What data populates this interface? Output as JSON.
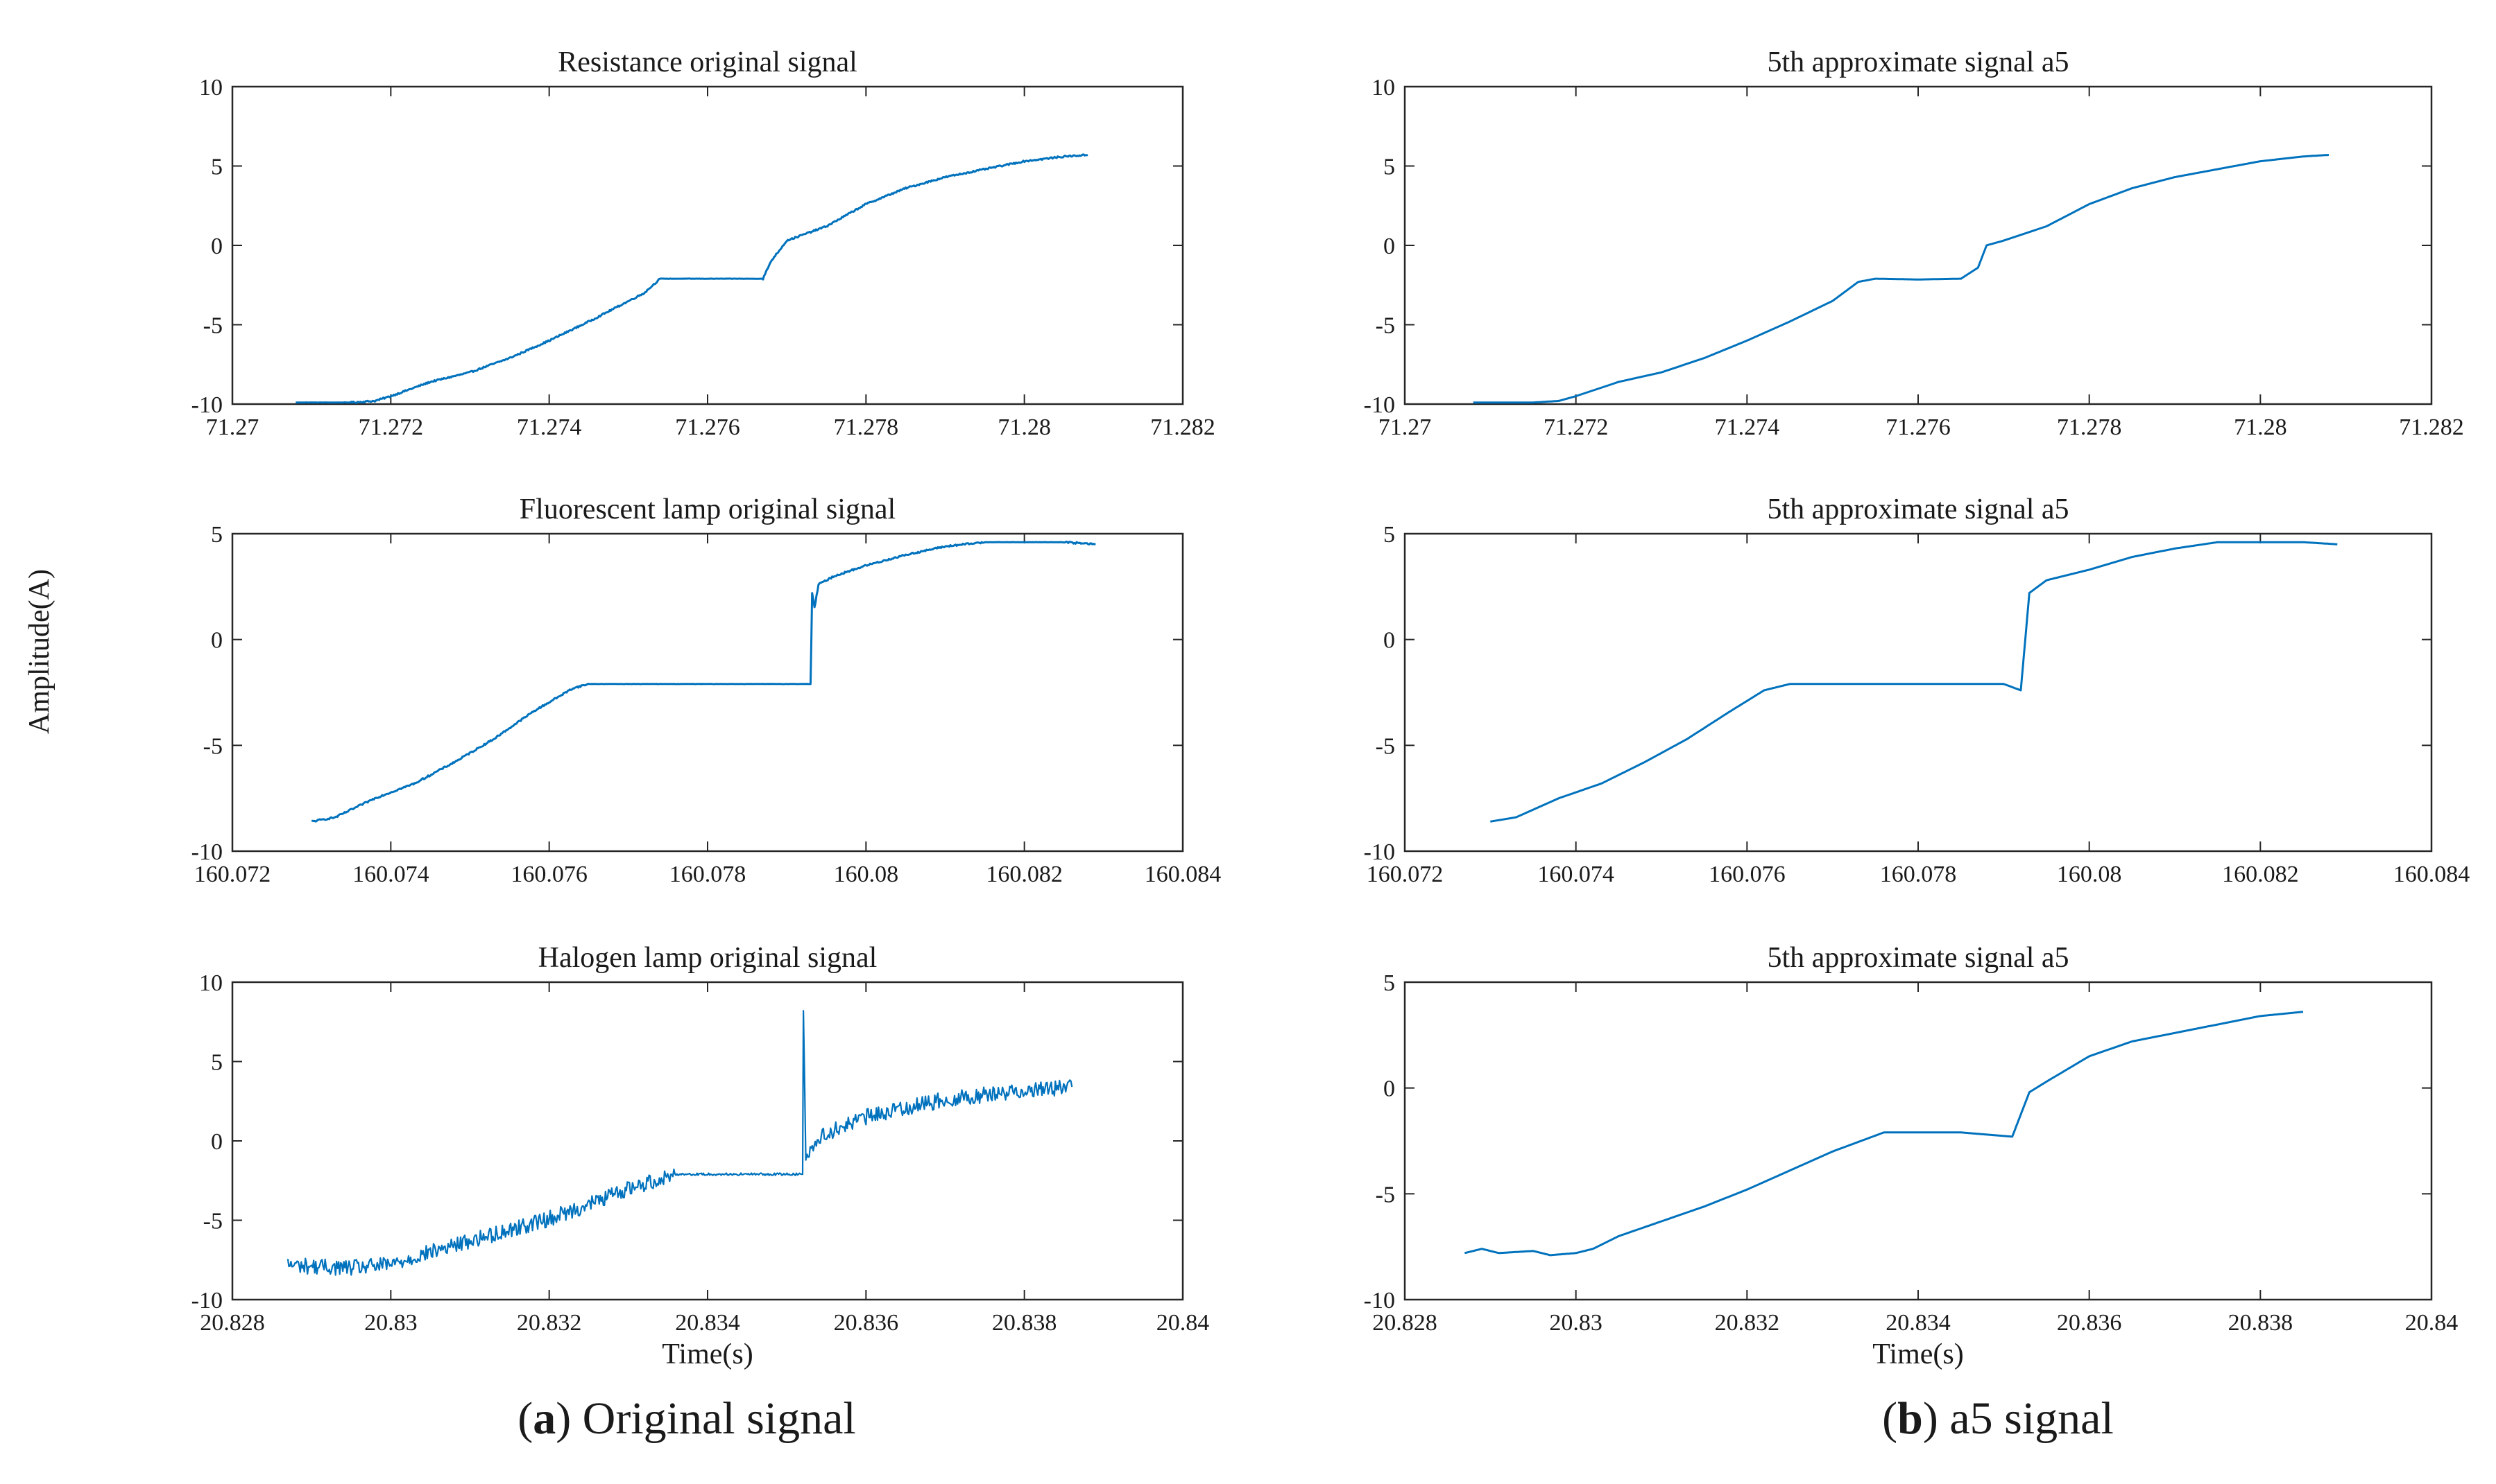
{
  "figure": {
    "ylabel": "Amplitude(A)",
    "captions": [
      {
        "label": "a",
        "text": "Original signal"
      },
      {
        "label": "b",
        "text": "a5 signal"
      }
    ],
    "line_color": "#0072BD",
    "axes_color": "#262626"
  },
  "chart_data": [
    {
      "type": "line",
      "title": "Resistance original signal",
      "xlabel": "",
      "ylabel": "Amplitude(A)",
      "xlim": [
        71.27,
        71.282
      ],
      "ylim": [
        -10,
        10
      ],
      "xticks": [
        71.27,
        71.272,
        71.274,
        71.276,
        71.278,
        71.28,
        71.282
      ],
      "xtick_labels": [
        "71.27",
        "71.272",
        "71.274",
        "71.276",
        "71.278",
        "71.28",
        "71.282"
      ],
      "yticks": [
        -10,
        -5,
        0,
        5,
        10
      ],
      "ytick_labels": [
        "-10",
        "-5",
        "0",
        "5",
        "10"
      ],
      "noise": 0.05,
      "series": [
        {
          "name": "Resistance",
          "x": [
            71.2708,
            71.2715,
            71.2718,
            71.272,
            71.2725,
            71.273,
            71.2735,
            71.274,
            71.2745,
            71.2752,
            71.2754,
            71.2757,
            71.2763,
            71.2767,
            71.2768,
            71.277,
            71.2775,
            71.278,
            71.2785,
            71.279,
            71.2795,
            71.28,
            71.2805,
            71.2808
          ],
          "y": [
            -9.9,
            -9.9,
            -9.8,
            -9.5,
            -8.6,
            -8.0,
            -7.1,
            -6.0,
            -4.8,
            -3.0,
            -2.1,
            -2.1,
            -2.1,
            -2.1,
            -1.0,
            0.3,
            1.2,
            2.6,
            3.6,
            4.3,
            4.8,
            5.3,
            5.6,
            5.7
          ]
        }
      ]
    },
    {
      "type": "line",
      "title": "5th approximate signal a5",
      "xlabel": "",
      "ylabel": "",
      "xlim": [
        71.27,
        71.282
      ],
      "ylim": [
        -10,
        10
      ],
      "xticks": [
        71.27,
        71.272,
        71.274,
        71.276,
        71.278,
        71.28,
        71.282
      ],
      "xtick_labels": [
        "71.27",
        "71.272",
        "71.274",
        "71.276",
        "71.278",
        "71.28",
        "71.282"
      ],
      "yticks": [
        -10,
        -5,
        0,
        5,
        10
      ],
      "ytick_labels": [
        "-10",
        "-5",
        "0",
        "5",
        "10"
      ],
      "noise": 0,
      "series": [
        {
          "name": "a5",
          "x": [
            71.2708,
            71.2715,
            71.2718,
            71.272,
            71.2725,
            71.273,
            71.2735,
            71.274,
            71.2745,
            71.275,
            71.2753,
            71.2755,
            71.276,
            71.2765,
            71.2767,
            71.2768,
            71.277,
            71.2775,
            71.278,
            71.2785,
            71.279,
            71.2795,
            71.28,
            71.2805,
            71.2808
          ],
          "y": [
            -9.9,
            -9.9,
            -9.8,
            -9.5,
            -8.6,
            -8.0,
            -7.1,
            -6.0,
            -4.8,
            -3.5,
            -2.3,
            -2.1,
            -2.15,
            -2.1,
            -1.4,
            0.0,
            0.3,
            1.2,
            2.6,
            3.6,
            4.3,
            4.8,
            5.3,
            5.6,
            5.7
          ]
        }
      ]
    },
    {
      "type": "line",
      "title": "Fluorescent lamp original signal",
      "xlabel": "",
      "ylabel": "Amplitude(A)",
      "xlim": [
        160.072,
        160.084
      ],
      "ylim": [
        -10,
        5
      ],
      "xticks": [
        160.072,
        160.074,
        160.076,
        160.078,
        160.08,
        160.082,
        160.084
      ],
      "xtick_labels": [
        "160.072",
        "160.074",
        "160.076",
        "160.078",
        "160.08",
        "160.082",
        "160.084"
      ],
      "yticks": [
        -10,
        -5,
        0,
        5
      ],
      "ytick_labels": [
        "-10",
        "-5",
        "0",
        "5"
      ],
      "noise": 0.04,
      "series": [
        {
          "name": "Fluorescent lamp",
          "x": [
            160.073,
            160.0733,
            160.0738,
            160.0743,
            160.0748,
            160.0753,
            160.0758,
            160.0763,
            160.0765,
            160.077,
            160.0775,
            160.078,
            160.0785,
            160.079,
            160.0793,
            160.07932,
            160.07935,
            160.0794,
            160.0796,
            160.08,
            160.0805,
            160.081,
            160.0815,
            160.082,
            160.0825,
            160.0829
          ],
          "y": [
            -8.6,
            -8.4,
            -7.5,
            -6.8,
            -5.8,
            -4.7,
            -3.4,
            -2.3,
            -2.1,
            -2.1,
            -2.1,
            -2.1,
            -2.1,
            -2.1,
            -2.1,
            2.2,
            1.5,
            2.6,
            3.0,
            3.5,
            4.0,
            4.4,
            4.6,
            4.6,
            4.6,
            4.5
          ]
        }
      ]
    },
    {
      "type": "line",
      "title": "5th approximate signal a5",
      "xlabel": "",
      "ylabel": "",
      "xlim": [
        160.072,
        160.084
      ],
      "ylim": [
        -10,
        5
      ],
      "xticks": [
        160.072,
        160.074,
        160.076,
        160.078,
        160.08,
        160.082,
        160.084
      ],
      "xtick_labels": [
        "160.072",
        "160.074",
        "160.076",
        "160.078",
        "160.08",
        "160.082",
        "160.084"
      ],
      "yticks": [
        -10,
        -5,
        0,
        5
      ],
      "ytick_labels": [
        "-10",
        "-5",
        "0",
        "5"
      ],
      "noise": 0,
      "series": [
        {
          "name": "a5",
          "x": [
            160.073,
            160.0733,
            160.0738,
            160.0743,
            160.0748,
            160.0753,
            160.0758,
            160.0762,
            160.0765,
            160.077,
            160.0775,
            160.078,
            160.0785,
            160.079,
            160.0792,
            160.0793,
            160.0795,
            160.0797,
            160.08,
            160.0805,
            160.081,
            160.0815,
            160.082,
            160.0825,
            160.0829
          ],
          "y": [
            -8.6,
            -8.4,
            -7.5,
            -6.8,
            -5.8,
            -4.7,
            -3.4,
            -2.4,
            -2.1,
            -2.1,
            -2.1,
            -2.1,
            -2.1,
            -2.1,
            -2.4,
            2.2,
            2.8,
            3.0,
            3.3,
            3.9,
            4.3,
            4.6,
            4.6,
            4.6,
            4.5
          ]
        }
      ]
    },
    {
      "type": "line",
      "title": "Halogen lamp original signal",
      "xlabel": "Time(s)",
      "ylabel": "Amplitude(A)",
      "xlim": [
        20.828,
        20.84
      ],
      "ylim": [
        -10,
        10
      ],
      "xticks": [
        20.828,
        20.83,
        20.832,
        20.834,
        20.836,
        20.838,
        20.84
      ],
      "xtick_labels": [
        "20.828",
        "20.83",
        "20.832",
        "20.834",
        "20.836",
        "20.838",
        "20.84"
      ],
      "yticks": [
        -10,
        -5,
        0,
        5,
        10
      ],
      "ytick_labels": [
        "-10",
        "-5",
        "0",
        "5",
        "10"
      ],
      "noise": 0.5,
      "series": [
        {
          "name": "Halogen lamp",
          "x": [
            20.8287,
            20.829,
            20.8295,
            20.83,
            20.8305,
            20.831,
            20.8315,
            20.832,
            20.8325,
            20.833,
            20.8336,
            20.834,
            20.8345,
            20.8352,
            20.83521,
            20.83524,
            20.83527,
            20.8355,
            20.836,
            20.8365,
            20.837,
            20.8375,
            20.838,
            20.8386
          ],
          "y": [
            -7.8,
            -7.9,
            -8.0,
            -7.8,
            -7.0,
            -6.3,
            -5.6,
            -4.9,
            -4.0,
            -3.0,
            -2.1,
            -2.1,
            -2.1,
            -2.1,
            8.2,
            -1.0,
            -0.6,
            0.5,
            1.5,
            2.1,
            2.6,
            2.9,
            3.2,
            3.4
          ]
        }
      ]
    },
    {
      "type": "line",
      "title": "5th approximate signal a5",
      "xlabel": "Time(s)",
      "ylabel": "",
      "xlim": [
        20.828,
        20.84
      ],
      "ylim": [
        -10,
        5
      ],
      "xticks": [
        20.828,
        20.83,
        20.832,
        20.834,
        20.836,
        20.838,
        20.84
      ],
      "xtick_labels": [
        "20.828",
        "20.83",
        "20.832",
        "20.834",
        "20.836",
        "20.838",
        "20.84"
      ],
      "yticks": [
        -10,
        -5,
        0,
        5
      ],
      "ytick_labels": [
        "-10",
        "-5",
        "0",
        "5"
      ],
      "noise": 0,
      "series": [
        {
          "name": "a5",
          "x": [
            20.8287,
            20.8289,
            20.8291,
            20.8295,
            20.8297,
            20.83,
            20.8302,
            20.8305,
            20.831,
            20.8315,
            20.832,
            20.8325,
            20.833,
            20.8336,
            20.834,
            20.8345,
            20.8351,
            20.8353,
            20.8355,
            20.836,
            20.8365,
            20.837,
            20.8375,
            20.838,
            20.8385
          ],
          "y": [
            -7.8,
            -7.6,
            -7.8,
            -7.7,
            -7.9,
            -7.8,
            -7.6,
            -7.0,
            -6.3,
            -5.6,
            -4.8,
            -3.9,
            -3.0,
            -2.1,
            -2.1,
            -2.1,
            -2.3,
            -0.2,
            0.3,
            1.5,
            2.2,
            2.6,
            3.0,
            3.4,
            3.6
          ]
        }
      ]
    }
  ]
}
